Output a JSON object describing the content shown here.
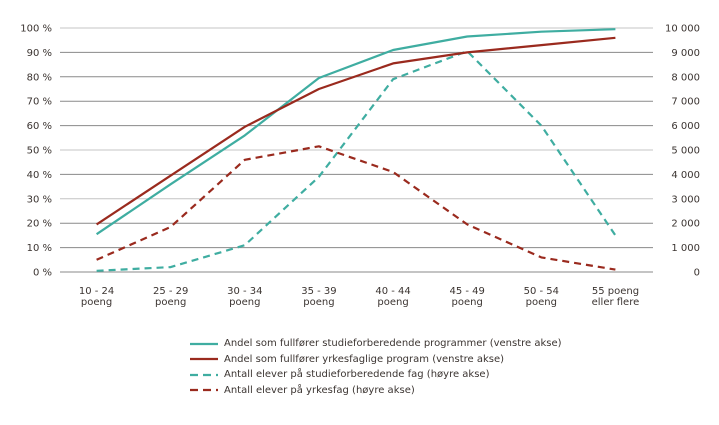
{
  "chart_data": {
    "type": "line",
    "title": "",
    "xlabel": "",
    "ylabel_left": "",
    "ylabel_right": "",
    "categories": [
      [
        "10 - 24",
        "poeng"
      ],
      [
        "25 - 29",
        "poeng"
      ],
      [
        "30 - 34",
        "poeng"
      ],
      [
        "35 - 39",
        "poeng"
      ],
      [
        "40 - 44",
        "poeng"
      ],
      [
        "45 - 49",
        "poeng"
      ],
      [
        "50 - 54",
        "poeng"
      ],
      [
        "55 poeng",
        "eller flere"
      ]
    ],
    "left_axis": {
      "ylim": [
        0,
        100
      ],
      "ticks": [
        0,
        10,
        20,
        30,
        40,
        50,
        60,
        70,
        80,
        90,
        100
      ],
      "tick_labels": [
        "0 %",
        "10 %",
        "20 %",
        "30 %",
        "40 %",
        "50 %",
        "60 %",
        "70 %",
        "80 %",
        "90 %",
        "100 %"
      ]
    },
    "right_axis": {
      "ylim": [
        0,
        10000
      ],
      "ticks": [
        0,
        1000,
        2000,
        3000,
        4000,
        5000,
        6000,
        7000,
        8000,
        9000,
        10000
      ],
      "tick_labels": [
        "0",
        "1 000",
        "2 000",
        "3 000",
        "4 000",
        "5 000",
        "6 000",
        "7 000",
        "8 000",
        "9 000",
        "10 000"
      ]
    },
    "grid": true,
    "legend_position": "bottom",
    "series": [
      {
        "name": "Andel som fullfører studieforberedende programmer (venstre akse)",
        "axis": "left",
        "color": "#3fada1",
        "style": "solid",
        "values": [
          15.5,
          36,
          56,
          79.5,
          91,
          96.5,
          98.5,
          99.5
        ]
      },
      {
        "name": "Andel som fullfører yrkesfaglige program (venstre akse)",
        "axis": "left",
        "color": "#9a2a1e",
        "style": "solid",
        "values": [
          19.5,
          39.5,
          59.5,
          75,
          85.5,
          90,
          93,
          96
        ]
      },
      {
        "name": "Antall elever på studieforberedende fag (høyre akse)",
        "axis": "right",
        "color": "#3fada1",
        "style": "dashed",
        "values": [
          50,
          200,
          1100,
          3900,
          7900,
          9050,
          6000,
          1500
        ]
      },
      {
        "name": "Antall elever på yrkesfag (høyre akse)",
        "axis": "right",
        "color": "#9a2a1e",
        "style": "dashed",
        "values": [
          500,
          1850,
          4600,
          5150,
          4100,
          1950,
          600,
          100
        ]
      }
    ]
  }
}
